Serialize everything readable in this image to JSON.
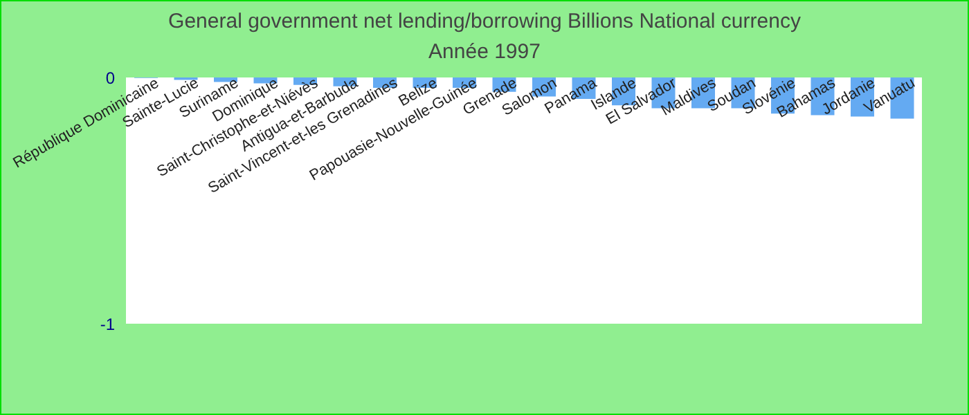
{
  "chart_data": {
    "type": "bar",
    "title": "General government net lending/borrowing Billions National currency",
    "subtitle": "Année 1997",
    "categories": [
      "République Dominicaine",
      "Sainte-Lucie",
      "Suriname",
      "Dominique",
      "Saint-Christophe-et-Niévès",
      "Antigua-et-Barbuda",
      "Saint-Vincent-et-les Grenadines",
      "Belize",
      "Papouasie-Nouvelle-Guinée",
      "Grenade",
      "Salomon",
      "Panama",
      "Islande",
      "El Salvador",
      "Maldives",
      "Soudan",
      "Slovénie",
      "Bahamas",
      "Jordanie",
      "Vanuatu"
    ],
    "values": [
      -0.002,
      -0.01,
      -0.018,
      -0.024,
      -0.03,
      -0.036,
      -0.042,
      -0.042,
      -0.042,
      -0.058,
      -0.077,
      -0.087,
      -0.113,
      -0.125,
      -0.125,
      -0.125,
      -0.147,
      -0.153,
      -0.159,
      -0.167
    ],
    "color": "#64aaf2",
    "ylim": [
      -1,
      0
    ],
    "yticks": [
      0,
      -1
    ],
    "grid": false,
    "legend": false
  }
}
